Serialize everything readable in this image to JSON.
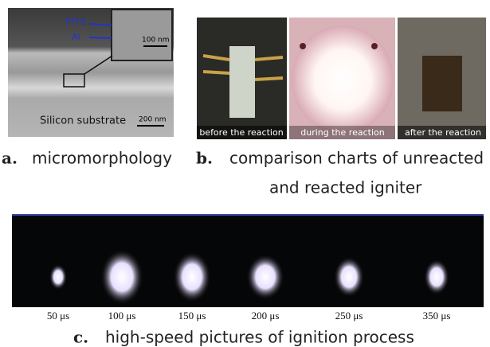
{
  "panel_a": {
    "layer_labels": [
      "PTFE",
      "Al"
    ],
    "inset_scale": "100 nm",
    "substrate": "Silicon substrate",
    "scale": "200 nm"
  },
  "panel_b": {
    "photos": [
      "before the reaction",
      "during the reaction",
      "after the reaction"
    ]
  },
  "panel_c": {
    "times": [
      "50 μs",
      "100 μs",
      "150 μs",
      "200 μs",
      "250 μs",
      "350 μs"
    ]
  },
  "captions": {
    "a_letter": "a.",
    "a_text": "micromorphology",
    "b_letter": "b.",
    "b_text_1": "comparison charts of unreacted",
    "b_text_2": "and reacted igniter",
    "c_letter": "c.",
    "c_text": "high-speed pictures of ignition process"
  }
}
